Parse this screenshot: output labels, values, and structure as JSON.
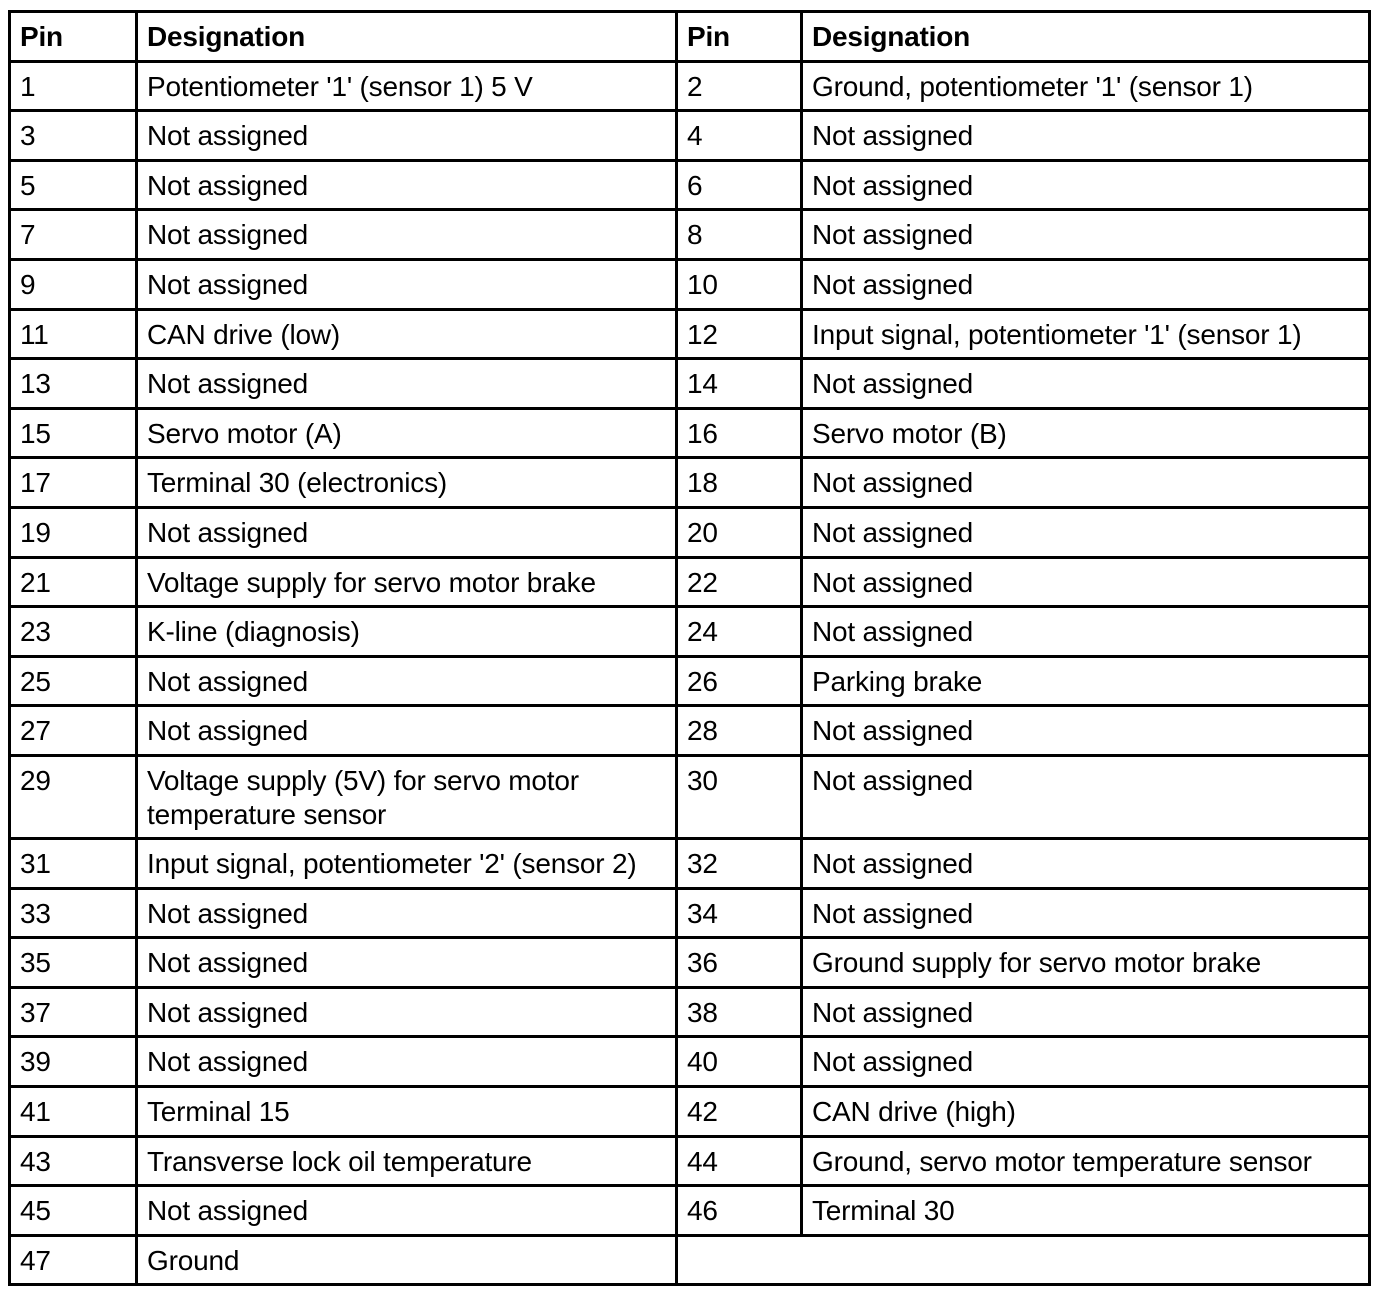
{
  "table": {
    "columns": [
      "Pin",
      "Designation",
      "Pin",
      "Designation"
    ],
    "rows": [
      [
        "1",
        "Potentiometer '1' (sensor 1) 5 V",
        "2",
        "Ground, potentiometer '1' (sensor 1)"
      ],
      [
        "3",
        "Not assigned",
        "4",
        "Not assigned"
      ],
      [
        "5",
        "Not assigned",
        "6",
        "Not assigned"
      ],
      [
        "7",
        "Not assigned",
        "8",
        "Not assigned"
      ],
      [
        "9",
        "Not assigned",
        "10",
        "Not assigned"
      ],
      [
        "11",
        "CAN drive (low)",
        "12",
        "Input signal, potentiometer '1' (sensor 1)"
      ],
      [
        "13",
        "Not assigned",
        "14",
        "Not assigned"
      ],
      [
        "15",
        "Servo motor (A)",
        "16",
        "Servo motor (B)"
      ],
      [
        "17",
        "Terminal 30 (electronics)",
        "18",
        "Not assigned"
      ],
      [
        "19",
        "Not assigned",
        "20",
        "Not assigned"
      ],
      [
        "21",
        "Voltage supply for servo motor brake",
        "22",
        "Not assigned"
      ],
      [
        "23",
        "K-line (diagnosis)",
        "24",
        "Not assigned"
      ],
      [
        "25",
        "Not assigned",
        "26",
        "Parking brake"
      ],
      [
        "27",
        "Not assigned",
        "28",
        "Not assigned"
      ],
      [
        "29",
        "Voltage supply (5V) for servo motor temperature sensor",
        "30",
        "Not assigned"
      ],
      [
        "31",
        "Input signal, potentiometer '2' (sensor 2)",
        "32",
        "Not assigned"
      ],
      [
        "33",
        "Not assigned",
        "34",
        "Not assigned"
      ],
      [
        "35",
        "Not assigned",
        "36",
        "Ground supply for servo motor brake"
      ],
      [
        "37",
        "Not assigned",
        "38",
        "Not assigned"
      ],
      [
        "39",
        "Not assigned",
        "40",
        "Not assigned"
      ],
      [
        "41",
        "Terminal 15",
        "42",
        "CAN drive (high)"
      ],
      [
        "43",
        "Transverse lock oil temperature",
        "44",
        "Ground, servo motor temperature sensor"
      ],
      [
        "45",
        "Not assigned",
        "46",
        "Terminal 30"
      ],
      [
        "47",
        "Ground"
      ]
    ]
  }
}
